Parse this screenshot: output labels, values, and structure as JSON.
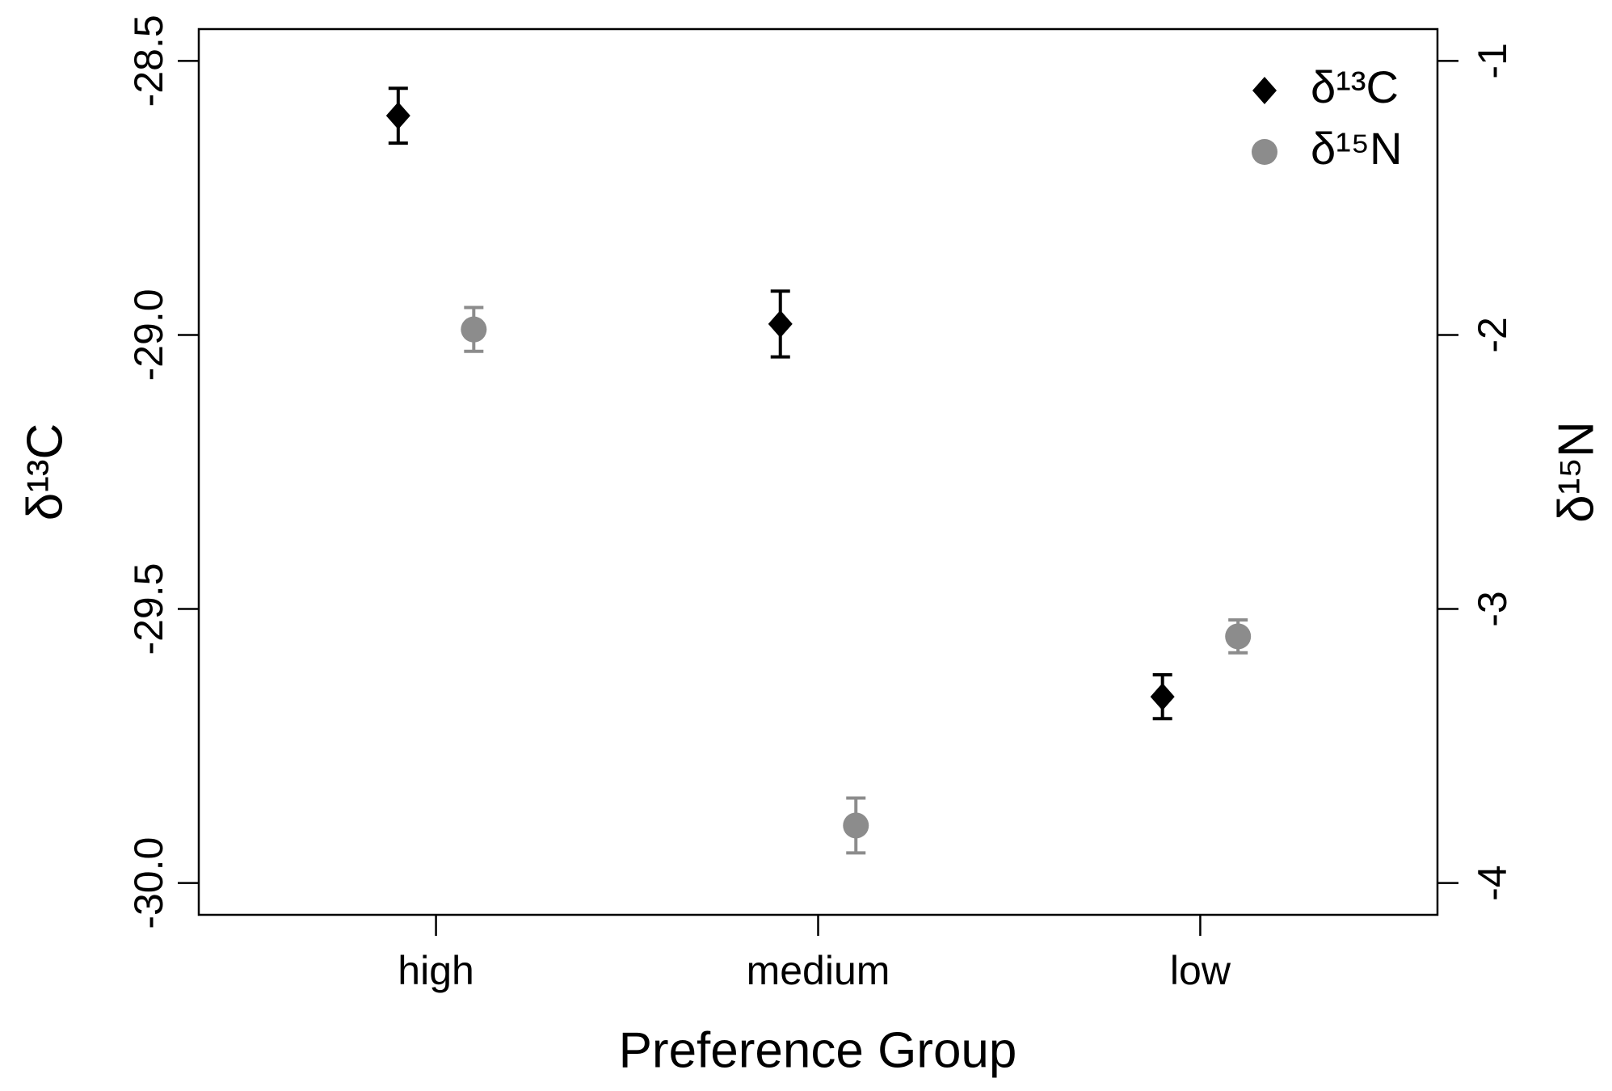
{
  "chart_data": {
    "type": "errorbar",
    "x_label": "Preference Group",
    "y_label": "δ¹³C",
    "y2_label": "δ¹⁵N",
    "categories": [
      "high",
      "medium",
      "low"
    ],
    "series": [
      {
        "name": "δ¹³C",
        "color": "#000000",
        "marker": "diamond",
        "values": [
          -28.6,
          -28.98,
          -29.66
        ],
        "errors": [
          0.05,
          0.06,
          0.04
        ]
      },
      {
        "name": "δ¹⁵N",
        "color": "#8c8c8c",
        "marker": "circle",
        "axis": "y2",
        "values": [
          -1.98,
          -3.79,
          -3.1
        ],
        "errors": [
          0.08,
          0.1,
          0.06
        ]
      }
    ],
    "ylim": [
      -30.058,
      -28.442
    ],
    "yticks": [
      -28.5,
      {
        "value": -29,
        "label": "-29.0"
      },
      -29.5,
      {
        "value": -30,
        "label": "-30.0"
      }
    ],
    "y2lim": [
      -4.116,
      -0.884
    ],
    "y2ticks": [
      -1,
      -2,
      -3,
      -4
    ],
    "legend": "top-right"
  }
}
